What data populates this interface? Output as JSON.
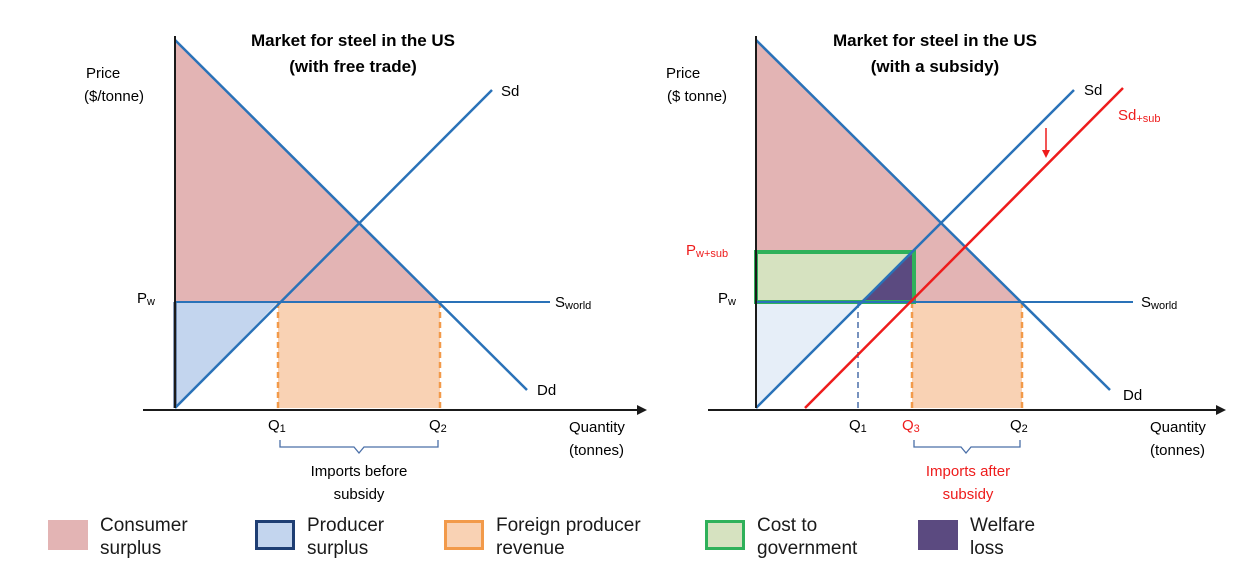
{
  "colors": {
    "consumer": "#e3b4b4",
    "producer": "#c3d5ee",
    "producer_light": "#e6eef8",
    "foreign": "#f9d2b4",
    "government": "#d6e2c0",
    "welfare": "#5b4a80",
    "line_blue": "#2a72b8",
    "line_red": "#ee1c1c",
    "orange_dash": "#f29a4a",
    "green_border": "#2fb15a"
  },
  "left": {
    "title_line1": "Market for steel in the US",
    "title_line2": "(with free trade)",
    "y_label_1": "Price",
    "y_label_2": "($/tonne)",
    "x_label_1": "Quantity",
    "x_label_2": "(tonnes)",
    "supply_label": "Sd",
    "demand_label": "Dd",
    "world_label_main": "S",
    "world_label_sub": "world",
    "pw_main": "P",
    "pw_sub": "w",
    "q1_main": "Q",
    "q1_sub": "1",
    "q2_main": "Q",
    "q2_sub": "2",
    "brace_label_1": "Imports before",
    "brace_label_2": "subsidy"
  },
  "right": {
    "title_line1": "Market for steel in the US",
    "title_line2": "(with a subsidy)",
    "y_label_1": "Price",
    "y_label_2": "($ tonne)",
    "x_label_1": "Quantity",
    "x_label_2": "(tonnes)",
    "supply_label": "Sd",
    "subsidy_supply_main": "Sd",
    "subsidy_supply_sub": "+sub",
    "demand_label": "Dd",
    "world_label_main": "S",
    "world_label_sub": "world",
    "pw_main": "P",
    "pw_sub": "w",
    "pwsub_main": "P",
    "pwsub_sub": "w+sub",
    "q1_main": "Q",
    "q1_sub": "1",
    "q3_main": "Q",
    "q3_sub": "3",
    "q2_main": "Q",
    "q2_sub": "2",
    "brace_label_1": "Imports after",
    "brace_label_2": "subsidy"
  },
  "legend": [
    {
      "line1": "Consumer",
      "line2": "surplus"
    },
    {
      "line1": "Producer",
      "line2": "surplus"
    },
    {
      "line1": "Foreign producer",
      "line2": "revenue"
    },
    {
      "line1": "Cost to",
      "line2": "government"
    },
    {
      "line1": "Welfare",
      "line2": "loss"
    }
  ]
}
